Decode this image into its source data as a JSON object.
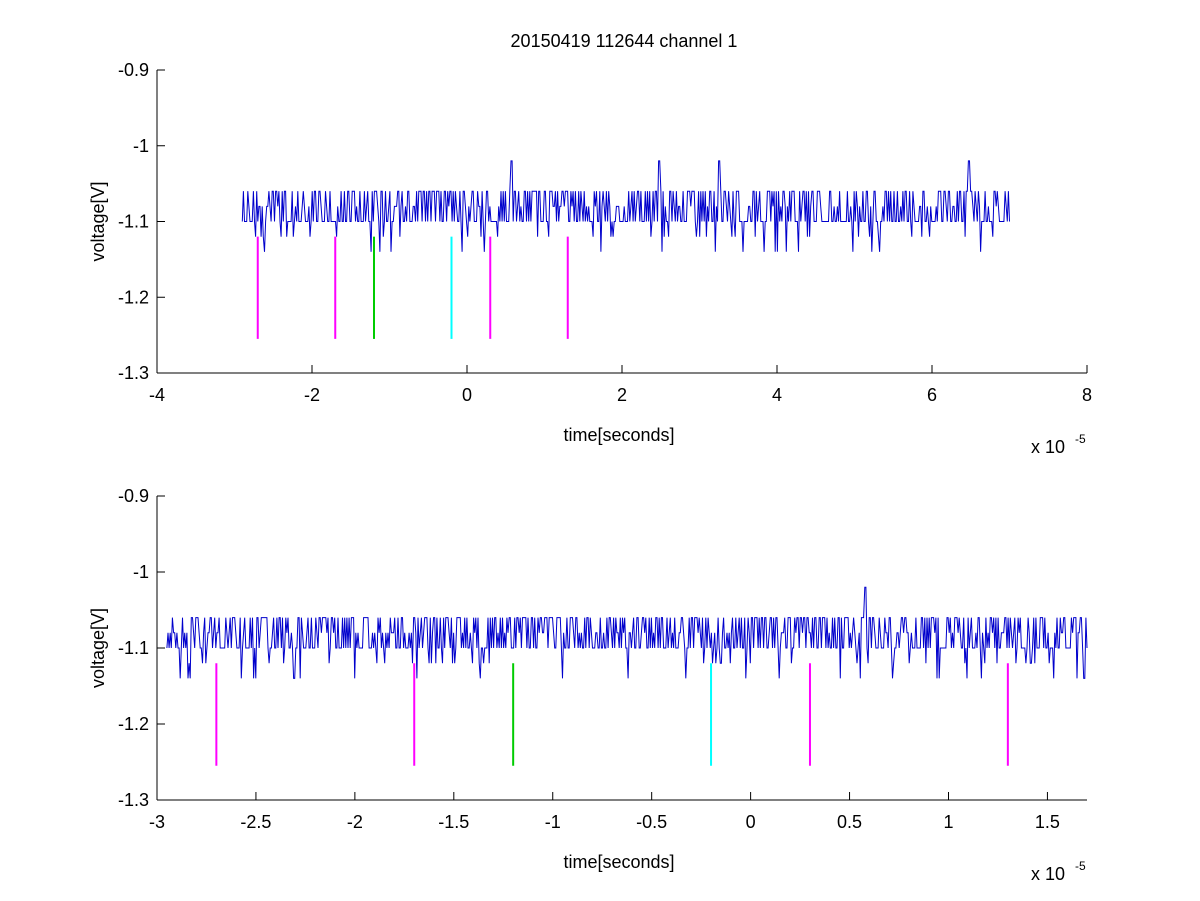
{
  "figure_title": "20150419 112644 channel 1",
  "chart_data": [
    {
      "type": "line",
      "title": "20150419 112644 channel 1",
      "xlabel": "time[seconds]",
      "ylabel": "voltage[V]",
      "x_multiplier_label": "x 10",
      "x_multiplier_exponent": "-5",
      "xlim": [
        -4,
        8
      ],
      "ylim": [
        -1.3,
        -0.9
      ],
      "y_reversed": true,
      "grid": false,
      "xticks": [
        -4,
        -2,
        0,
        2,
        4,
        6,
        8
      ],
      "xtick_labels": [
        "-4",
        "-2",
        "0",
        "2",
        "4",
        "6",
        "8"
      ],
      "yticks": [
        -0.9,
        -1.0,
        -1.1,
        -1.2,
        -1.3
      ],
      "ytick_labels": [
        "-0.9",
        "-1",
        "-1.1",
        "-1.2",
        "-1.3"
      ],
      "series": [
        {
          "color": "#0000cc",
          "x_range": [
            -2.9,
            7.0
          ],
          "baseline": -1.1,
          "levels": [
            -1.14,
            -1.12,
            -1.1,
            -1.08,
            -1.06
          ],
          "spikes": [
            [
              0.58,
              -1.02
            ],
            [
              2.48,
              -1.02
            ],
            [
              3.25,
              -1.02
            ],
            [
              6.48,
              -1.02
            ]
          ]
        }
      ],
      "markers": [
        {
          "x": -2.7,
          "y_top": -1.12,
          "y_bottom": -1.255,
          "color": "#ff00ff"
        },
        {
          "x": -1.7,
          "y_top": -1.12,
          "y_bottom": -1.255,
          "color": "#ff00ff"
        },
        {
          "x": -1.2,
          "y_top": -1.12,
          "y_bottom": -1.255,
          "color": "#00cc00"
        },
        {
          "x": -0.2,
          "y_top": -1.12,
          "y_bottom": -1.255,
          "color": "#00ffff"
        },
        {
          "x": 0.3,
          "y_top": -1.12,
          "y_bottom": -1.255,
          "color": "#ff00ff"
        },
        {
          "x": 1.3,
          "y_top": -1.12,
          "y_bottom": -1.255,
          "color": "#ff00ff"
        }
      ]
    },
    {
      "type": "line",
      "title": "",
      "xlabel": "time[seconds]",
      "ylabel": "voltage[V]",
      "x_multiplier_label": "x 10",
      "x_multiplier_exponent": "-5",
      "xlim": [
        -3.0,
        1.7
      ],
      "ylim": [
        -1.3,
        -0.9
      ],
      "y_reversed": true,
      "grid": false,
      "xticks": [
        -3,
        -2.5,
        -2,
        -1.5,
        -1,
        -0.5,
        0,
        0.5,
        1,
        1.5
      ],
      "xtick_labels": [
        "-3",
        "-2.5",
        "-2",
        "-1.5",
        "-1",
        "-0.5",
        "0",
        "0.5",
        "1",
        "1.5"
      ],
      "yticks": [
        -0.9,
        -1.0,
        -1.1,
        -1.2,
        -1.3
      ],
      "ytick_labels": [
        "-0.9",
        "-1",
        "-1.1",
        "-1.2",
        "-1.3"
      ],
      "series": [
        {
          "color": "#0000cc",
          "x_range": [
            -2.95,
            1.7
          ],
          "baseline": -1.1,
          "levels": [
            -1.14,
            -1.12,
            -1.1,
            -1.08,
            -1.06
          ],
          "spikes": [
            [
              0.58,
              -1.02
            ]
          ]
        }
      ],
      "markers": [
        {
          "x": -2.7,
          "y_top": -1.12,
          "y_bottom": -1.255,
          "color": "#ff00ff"
        },
        {
          "x": -1.7,
          "y_top": -1.12,
          "y_bottom": -1.255,
          "color": "#ff00ff"
        },
        {
          "x": -1.2,
          "y_top": -1.12,
          "y_bottom": -1.255,
          "color": "#00cc00"
        },
        {
          "x": -0.2,
          "y_top": -1.12,
          "y_bottom": -1.255,
          "color": "#00ffff"
        },
        {
          "x": 0.3,
          "y_top": -1.12,
          "y_bottom": -1.255,
          "color": "#ff00ff"
        },
        {
          "x": 1.3,
          "y_top": -1.12,
          "y_bottom": -1.255,
          "color": "#ff00ff"
        }
      ]
    }
  ]
}
